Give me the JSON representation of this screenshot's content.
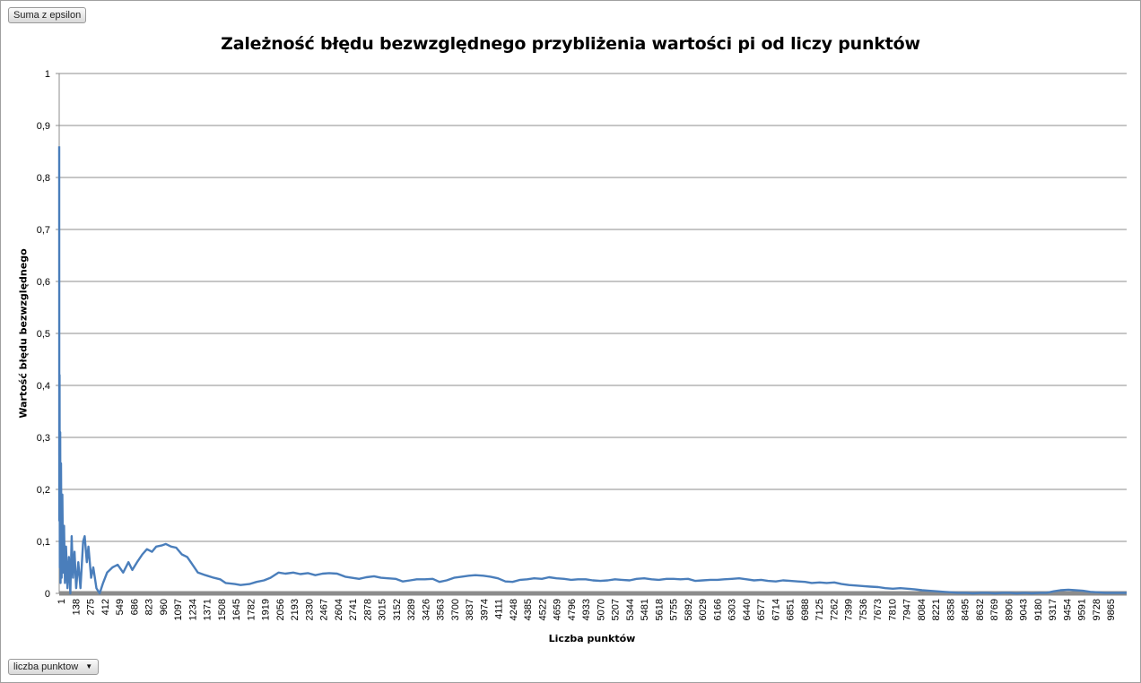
{
  "filter_button": {
    "label": "Suma z epsilon"
  },
  "axis_field_button": {
    "label": "liczba punktow"
  },
  "chart_data": {
    "type": "line",
    "title": "Zależność błędu bezwzględnego przybliżenia wartości pi od liczy punktów",
    "xlabel": "Liczba punktów",
    "ylabel": "Wartość błędu bezwzględnego",
    "x_range": [
      1,
      10000
    ],
    "ylim": [
      0,
      1
    ],
    "y_ticks": [
      "0",
      "0,1",
      "0,2",
      "0,3",
      "0,4",
      "0,5",
      "0,6",
      "0,7",
      "0,8",
      "0,9",
      "1"
    ],
    "x_tick_labels": [
      "1",
      "138",
      "275",
      "412",
      "549",
      "686",
      "823",
      "960",
      "1097",
      "1234",
      "1371",
      "1508",
      "1645",
      "1782",
      "1919",
      "2056",
      "2193",
      "2330",
      "2467",
      "2604",
      "2741",
      "2878",
      "3015",
      "3152",
      "3289",
      "3426",
      "3563",
      "3700",
      "3837",
      "3974",
      "4111",
      "4248",
      "4385",
      "4522",
      "4659",
      "4796",
      "4933",
      "5070",
      "5207",
      "5344",
      "5481",
      "5618",
      "5755",
      "5892",
      "6029",
      "6166",
      "6303",
      "6440",
      "6577",
      "6714",
      "6851",
      "6988",
      "7125",
      "7262",
      "7399",
      "7536",
      "7673",
      "7810",
      "7947",
      "8084",
      "8221",
      "8358",
      "8495",
      "8632",
      "8769",
      "8906",
      "9043",
      "9180",
      "9317",
      "9454",
      "9591",
      "9728",
      "9865"
    ],
    "grid": true,
    "legend": "none",
    "series": [
      {
        "color": "#4a7ebb",
        "points": [
          [
            1,
            0.86
          ],
          [
            2,
            0.14
          ],
          [
            4,
            0.42
          ],
          [
            7,
            0.05
          ],
          [
            10,
            0.31
          ],
          [
            14,
            0.02
          ],
          [
            18,
            0.25
          ],
          [
            24,
            0.03
          ],
          [
            30,
            0.19
          ],
          [
            38,
            0.04
          ],
          [
            46,
            0.13
          ],
          [
            55,
            0.02
          ],
          [
            65,
            0.09
          ],
          [
            78,
            0.01
          ],
          [
            92,
            0.07
          ],
          [
            105,
            0.0
          ],
          [
            118,
            0.11
          ],
          [
            130,
            0.03
          ],
          [
            145,
            0.08
          ],
          [
            160,
            0.01
          ],
          [
            180,
            0.06
          ],
          [
            200,
            0.01
          ],
          [
            225,
            0.1
          ],
          [
            240,
            0.11
          ],
          [
            260,
            0.06
          ],
          [
            275,
            0.09
          ],
          [
            300,
            0.03
          ],
          [
            320,
            0.05
          ],
          [
            350,
            0.01
          ],
          [
            380,
            0.0
          ],
          [
            412,
            0.02
          ],
          [
            450,
            0.04
          ],
          [
            500,
            0.05
          ],
          [
            549,
            0.055
          ],
          [
            600,
            0.04
          ],
          [
            650,
            0.06
          ],
          [
            686,
            0.045
          ],
          [
            730,
            0.06
          ],
          [
            780,
            0.075
          ],
          [
            823,
            0.085
          ],
          [
            870,
            0.08
          ],
          [
            910,
            0.09
          ],
          [
            960,
            0.092
          ],
          [
            1000,
            0.095
          ],
          [
            1050,
            0.09
          ],
          [
            1097,
            0.088
          ],
          [
            1150,
            0.075
          ],
          [
            1200,
            0.07
          ],
          [
            1234,
            0.06
          ],
          [
            1300,
            0.04
          ],
          [
            1371,
            0.035
          ],
          [
            1450,
            0.03
          ],
          [
            1508,
            0.027
          ],
          [
            1560,
            0.02
          ],
          [
            1645,
            0.018
          ],
          [
            1700,
            0.016
          ],
          [
            1782,
            0.018
          ],
          [
            1850,
            0.022
          ],
          [
            1919,
            0.025
          ],
          [
            1980,
            0.03
          ],
          [
            2056,
            0.04
          ],
          [
            2120,
            0.038
          ],
          [
            2193,
            0.04
          ],
          [
            2260,
            0.037
          ],
          [
            2330,
            0.039
          ],
          [
            2400,
            0.035
          ],
          [
            2467,
            0.038
          ],
          [
            2530,
            0.039
          ],
          [
            2604,
            0.038
          ],
          [
            2680,
            0.032
          ],
          [
            2741,
            0.03
          ],
          [
            2810,
            0.028
          ],
          [
            2878,
            0.031
          ],
          [
            2950,
            0.033
          ],
          [
            3015,
            0.03
          ],
          [
            3080,
            0.029
          ],
          [
            3152,
            0.028
          ],
          [
            3220,
            0.023
          ],
          [
            3289,
            0.025
          ],
          [
            3350,
            0.027
          ],
          [
            3426,
            0.027
          ],
          [
            3500,
            0.028
          ],
          [
            3563,
            0.022
          ],
          [
            3630,
            0.025
          ],
          [
            3700,
            0.03
          ],
          [
            3770,
            0.032
          ],
          [
            3837,
            0.034
          ],
          [
            3900,
            0.035
          ],
          [
            3974,
            0.034
          ],
          [
            4040,
            0.032
          ],
          [
            4111,
            0.029
          ],
          [
            4180,
            0.023
          ],
          [
            4248,
            0.022
          ],
          [
            4320,
            0.026
          ],
          [
            4385,
            0.027
          ],
          [
            4450,
            0.029
          ],
          [
            4522,
            0.028
          ],
          [
            4590,
            0.031
          ],
          [
            4659,
            0.029
          ],
          [
            4730,
            0.028
          ],
          [
            4796,
            0.026
          ],
          [
            4860,
            0.027
          ],
          [
            4933,
            0.027
          ],
          [
            5000,
            0.025
          ],
          [
            5070,
            0.024
          ],
          [
            5140,
            0.025
          ],
          [
            5207,
            0.027
          ],
          [
            5270,
            0.026
          ],
          [
            5344,
            0.025
          ],
          [
            5410,
            0.028
          ],
          [
            5481,
            0.029
          ],
          [
            5550,
            0.027
          ],
          [
            5618,
            0.026
          ],
          [
            5690,
            0.028
          ],
          [
            5755,
            0.028
          ],
          [
            5820,
            0.027
          ],
          [
            5892,
            0.028
          ],
          [
            5960,
            0.024
          ],
          [
            6029,
            0.025
          ],
          [
            6100,
            0.026
          ],
          [
            6166,
            0.026
          ],
          [
            6230,
            0.027
          ],
          [
            6303,
            0.028
          ],
          [
            6370,
            0.029
          ],
          [
            6440,
            0.027
          ],
          [
            6510,
            0.025
          ],
          [
            6577,
            0.026
          ],
          [
            6640,
            0.024
          ],
          [
            6714,
            0.023
          ],
          [
            6780,
            0.025
          ],
          [
            6851,
            0.024
          ],
          [
            6920,
            0.023
          ],
          [
            6988,
            0.022
          ],
          [
            7050,
            0.02
          ],
          [
            7125,
            0.021
          ],
          [
            7190,
            0.02
          ],
          [
            7262,
            0.021
          ],
          [
            7330,
            0.018
          ],
          [
            7399,
            0.016
          ],
          [
            7470,
            0.015
          ],
          [
            7536,
            0.014
          ],
          [
            7600,
            0.013
          ],
          [
            7673,
            0.012
          ],
          [
            7740,
            0.01
          ],
          [
            7810,
            0.009
          ],
          [
            7880,
            0.01
          ],
          [
            7947,
            0.009
          ],
          [
            8010,
            0.008
          ],
          [
            8084,
            0.006
          ],
          [
            8150,
            0.005
          ],
          [
            8221,
            0.004
          ],
          [
            8290,
            0.003
          ],
          [
            8358,
            0.002
          ],
          [
            8420,
            0.001
          ],
          [
            8495,
            0.001
          ],
          [
            8560,
            0.0
          ],
          [
            8632,
            0.001
          ],
          [
            8700,
            0.001
          ],
          [
            8769,
            0.0
          ],
          [
            8840,
            0.001
          ],
          [
            8906,
            0.001
          ],
          [
            8970,
            0.0
          ],
          [
            9043,
            0.001
          ],
          [
            9110,
            0.0
          ],
          [
            9180,
            0.001
          ],
          [
            9250,
            0.001
          ],
          [
            9317,
            0.004
          ],
          [
            9380,
            0.006
          ],
          [
            9454,
            0.007
          ],
          [
            9520,
            0.006
          ],
          [
            9591,
            0.005
          ],
          [
            9660,
            0.003
          ],
          [
            9728,
            0.002
          ],
          [
            9800,
            0.001
          ],
          [
            9865,
            0.001
          ],
          [
            9950,
            0.001
          ],
          [
            10000,
            0.001
          ]
        ]
      }
    ]
  }
}
